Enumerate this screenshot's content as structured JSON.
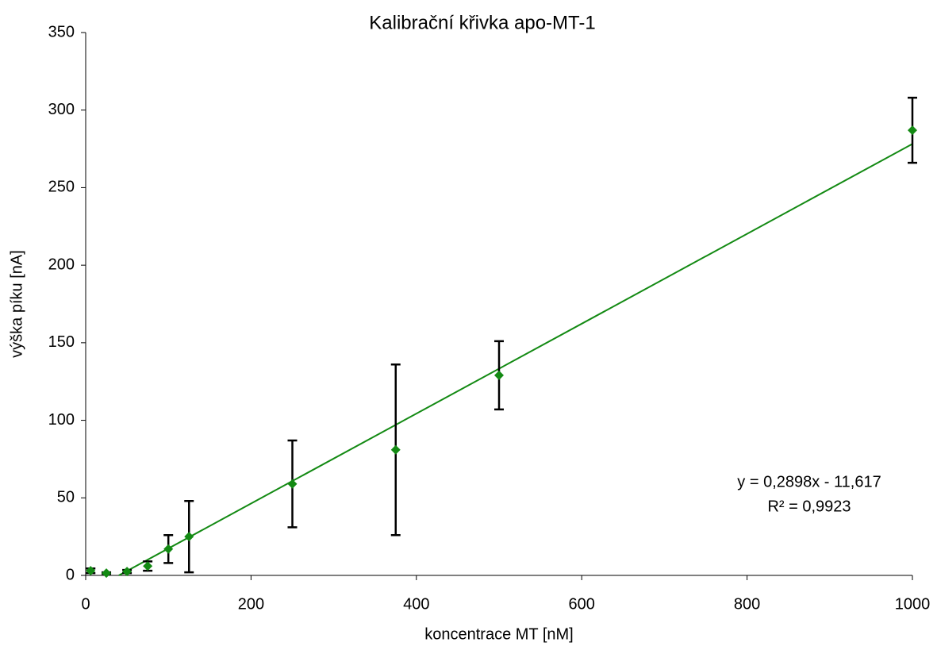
{
  "chart_data": {
    "type": "scatter",
    "title": "Kalibrační křivka apo-MT-1",
    "x_label": "koncentrace MT [nM]",
    "y_label": "výška píku [nA]",
    "x": [
      6,
      25,
      50,
      75,
      100,
      125,
      250,
      375,
      500,
      1000
    ],
    "series": [
      {
        "color": "#138a13",
        "values": [
          3,
          1.5,
          2.5,
          6,
          17,
          25,
          59,
          81,
          129,
          287
        ],
        "errors": [
          1.5,
          0.5,
          1,
          3,
          9,
          23,
          28,
          55,
          22,
          21
        ],
        "error_color": "#000000"
      }
    ],
    "trendline": {
      "color": "#138a13",
      "x": [
        40.09,
        1000
      ],
      "values": [
        0,
        278.18
      ]
    },
    "annotations": [
      "y = 0,2898x - 11,617",
      "R² = 0,9923"
    ],
    "xlim": [
      0,
      1000
    ],
    "xticks": [
      0,
      200,
      400,
      600,
      800,
      1000
    ],
    "ylim": [
      0,
      350
    ],
    "yticks": [
      0,
      50,
      100,
      150,
      200,
      250,
      300,
      350
    ],
    "grid": false
  }
}
